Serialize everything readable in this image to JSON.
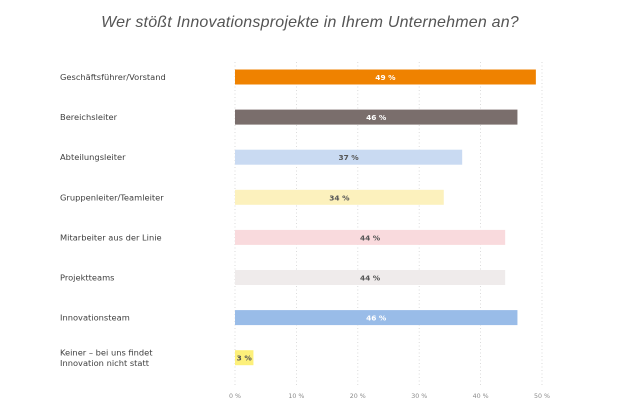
{
  "title": "Wer stößt Innovationsprojekte in Ihrem Unternehmen an?",
  "chart_data": {
    "type": "bar",
    "orientation": "horizontal",
    "title": "Wer stößt Innovationsprojekte in Ihrem Unternehmen an?",
    "xlabel": "",
    "ylabel": "",
    "categories": [
      [
        "Geschäftsführer/Vorstand"
      ],
      [
        "Bereichsleiter"
      ],
      [
        "Abteilungsleiter"
      ],
      [
        "Gruppenleiter/Teamleiter"
      ],
      [
        "Mitarbeiter aus der Linie"
      ],
      [
        "Projektteams"
      ],
      [
        "Innovationsteam"
      ],
      [
        "Keiner – bei uns findet",
        "Innovation nicht statt"
      ]
    ],
    "values": [
      49,
      46,
      37,
      34,
      44,
      44,
      46,
      3
    ],
    "value_labels": [
      "49 %",
      "46 %",
      "37 %",
      "34 %",
      "44 %",
      "44 %",
      "46 %",
      "3 %"
    ],
    "colors": [
      "#ef8200",
      "#7a6e6c",
      "#c9daf2",
      "#fcf1bd",
      "#f9dadd",
      "#efebeb",
      "#99bce8",
      "#fdf07a"
    ],
    "label_colors": [
      "#ffffff",
      "#ffffff",
      "#555555",
      "#555555",
      "#555555",
      "#555555",
      "#ffffff",
      "#555555"
    ],
    "xlim": [
      0,
      50
    ],
    "xticks": [
      0,
      10,
      20,
      30,
      40,
      50
    ],
    "xtick_labels": [
      "0 %",
      "10 %",
      "20 %",
      "30 %",
      "40 %",
      "50 %"
    ],
    "grid": "vertical dotted",
    "legend": "none"
  }
}
